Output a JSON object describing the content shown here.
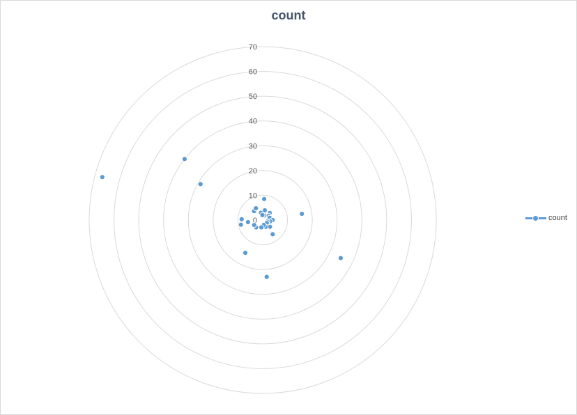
{
  "chart_data": {
    "type": "radar",
    "title": "count",
    "rlim": [
      0,
      70
    ],
    "r_ticks": [
      "0",
      "10",
      "20",
      "30",
      "40",
      "50",
      "60",
      "70"
    ],
    "grid": true,
    "legend_position": "right",
    "series": [
      {
        "name": "count",
        "color": "#5b9bd5",
        "marker": "circle",
        "points": [
          {
            "angle_deg": 4,
            "r": 8.5
          },
          {
            "angle_deg": 12,
            "r": 4
          },
          {
            "angle_deg": 19,
            "r": 2
          },
          {
            "angle_deg": 45,
            "r": 4
          },
          {
            "angle_deg": 55,
            "r": 3
          },
          {
            "angle_deg": 72,
            "r": 3
          },
          {
            "angle_deg": 81,
            "r": 16
          },
          {
            "angle_deg": 90,
            "r": 4
          },
          {
            "angle_deg": 100,
            "r": 3
          },
          {
            "angle_deg": 108,
            "r": 2
          },
          {
            "angle_deg": 116,
            "r": 35
          },
          {
            "angle_deg": 126,
            "r": 2
          },
          {
            "angle_deg": 133,
            "r": 4
          },
          {
            "angle_deg": 145,
            "r": 7
          },
          {
            "angle_deg": 156,
            "r": 3
          },
          {
            "angle_deg": 168,
            "r": 2
          },
          {
            "angle_deg": 176,
            "r": 23
          },
          {
            "angle_deg": 190,
            "r": 3
          },
          {
            "angle_deg": 208,
            "r": 15
          },
          {
            "angle_deg": 222,
            "r": 4
          },
          {
            "angle_deg": 240,
            "r": 4
          },
          {
            "angle_deg": 258,
            "r": 9
          },
          {
            "angle_deg": 262,
            "r": 6
          },
          {
            "angle_deg": 272,
            "r": 8.5
          },
          {
            "angle_deg": 285,
            "r": 67
          },
          {
            "angle_deg": 300,
            "r": 29
          },
          {
            "angle_deg": 308,
            "r": 40
          },
          {
            "angle_deg": 316,
            "r": 5
          },
          {
            "angle_deg": 330,
            "r": 5.5
          },
          {
            "angle_deg": 346,
            "r": 3
          },
          {
            "angle_deg": 356,
            "r": 2
          }
        ]
      }
    ]
  }
}
